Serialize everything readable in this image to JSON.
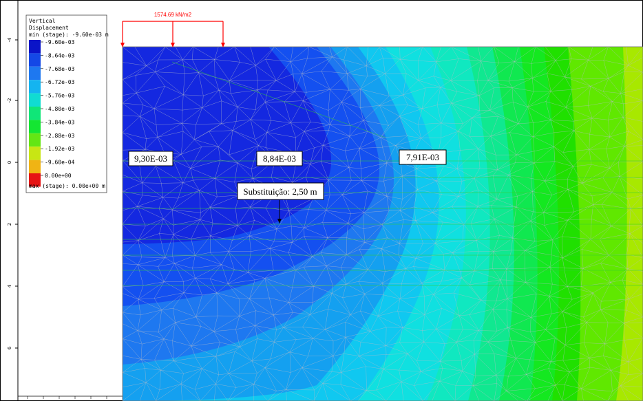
{
  "colors": {
    "load": "#ff0000",
    "mesh": "#b8bcc8",
    "interface": "#33cc33",
    "contours": [
      "#1428e0",
      "#1450f0",
      "#1e78f0",
      "#14a0f0",
      "#10c8f0",
      "#10e0e0",
      "#10e8c0",
      "#10e890",
      "#10e850",
      "#14e820",
      "#20e000",
      "#60e800",
      "#a8e800"
    ]
  },
  "legend": {
    "title_line1": "Vertical",
    "title_line2": "Displacement",
    "min_label": "min (stage): -9.60e-03 m",
    "max_label": "max (stage): 0.00e+00 m",
    "entries": [
      {
        "label": "-9.60e-03",
        "color": "#0a14c8"
      },
      {
        "label": "-8.64e-03",
        "color": "#1448e6"
      },
      {
        "label": "-7.68e-03",
        "color": "#1e78f0"
      },
      {
        "label": "-6.72e-03",
        "color": "#14b4f0"
      },
      {
        "label": "-5.76e-03",
        "color": "#10dcd2"
      },
      {
        "label": "-4.80e-03",
        "color": "#10e678"
      },
      {
        "label": "-3.84e-03",
        "color": "#14e632"
      },
      {
        "label": "-2.88e-03",
        "color": "#64e614"
      },
      {
        "label": "-1.92e-03",
        "color": "#c8e614"
      },
      {
        "label": "-9.60e-04",
        "color": "#f0b414"
      },
      {
        "label": "0.00e+00",
        "color": "#e61414"
      }
    ]
  },
  "load": {
    "label": "1574.69 kN/m2"
  },
  "callouts": {
    "c1": "9,30E-03",
    "c2": "8,84E-03",
    "c3": "7,91E-03",
    "c4": "Substituição: 2,50 m"
  },
  "axis": {
    "left_ticks": [
      "-4",
      "-2",
      "0",
      "2",
      "4",
      "6"
    ]
  }
}
